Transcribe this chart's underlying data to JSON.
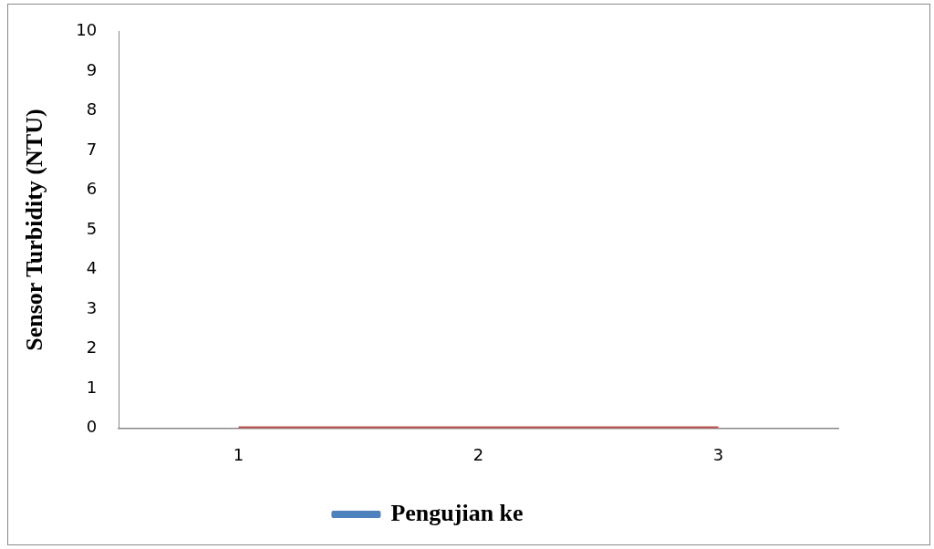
{
  "chart_data": {
    "type": "line",
    "ylabel": "Sensor Turbidity (NTU)",
    "categories": [
      "1",
      "2",
      "3"
    ],
    "series": [
      {
        "name": "Pengujian ke",
        "color": "#4f81bd",
        "values": [
          null,
          null,
          null
        ]
      },
      {
        "color": "#c0504d",
        "values": [
          0,
          0,
          0
        ]
      }
    ],
    "ylim": [
      0,
      10
    ],
    "yticks": [
      0,
      1,
      2,
      3,
      4,
      5,
      6,
      7,
      8,
      9,
      10
    ],
    "grid": false,
    "legend": "bottom",
    "marker": "none"
  }
}
